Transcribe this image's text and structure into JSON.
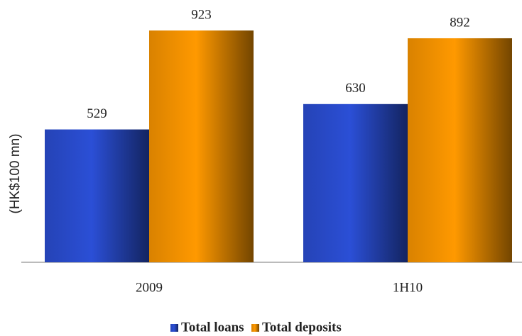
{
  "chart_data": {
    "type": "bar",
    "y_label": "(HK$100 mn)",
    "categories": [
      "2009",
      "1H10"
    ],
    "series": [
      {
        "name": "Total loans",
        "color": "#2b4fd6",
        "values": [
          529,
          630
        ]
      },
      {
        "name": "Total deposits",
        "color": "#ff9900",
        "values": [
          923,
          892
        ]
      }
    ]
  }
}
